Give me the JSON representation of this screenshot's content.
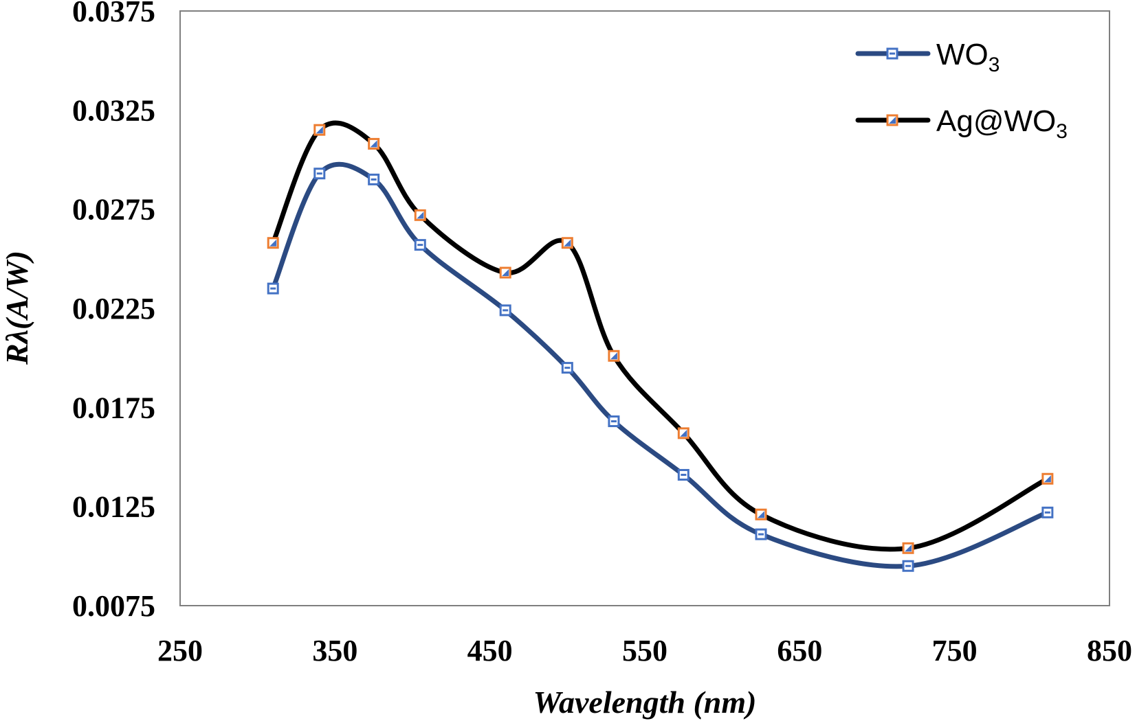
{
  "chart_data": {
    "type": "line",
    "title": "",
    "xlabel": "Wavelength (nm)",
    "ylabel": "Rλ(A/W)",
    "xlim": [
      250,
      850
    ],
    "ylim": [
      0.0075,
      0.0375
    ],
    "xticks": [
      250,
      350,
      450,
      550,
      650,
      750,
      850
    ],
    "yticks": [
      0.0075,
      0.0125,
      0.0175,
      0.0225,
      0.0275,
      0.0325,
      0.0375
    ],
    "xtick_labels": [
      "250",
      "350",
      "450",
      "550",
      "650",
      "750",
      "850"
    ],
    "ytick_labels": [
      "0.0075",
      "0.0125",
      "0.0175",
      "0.0225",
      "0.0275",
      "0.0325",
      "0.0375"
    ],
    "grid": false,
    "legend_position": "top-right",
    "smooth": true,
    "series": [
      {
        "name": "WO₃",
        "name_main": "WO",
        "name_sub": "3",
        "line_color": "#2b4a82",
        "marker_edge": "#4472c4",
        "marker": "square",
        "x": [
          310,
          340,
          375,
          405,
          460,
          500,
          530,
          575,
          625,
          720,
          810
        ],
        "y": [
          0.0235,
          0.0293,
          0.029,
          0.0257,
          0.0224,
          0.0195,
          0.0168,
          0.0141,
          0.0111,
          0.0095,
          0.0122
        ]
      },
      {
        "name": "Ag@WO₃",
        "name_main": "Ag@WO",
        "name_sub": "3",
        "line_color": "#000000",
        "marker_edge": "#ed7d31",
        "marker": "square",
        "x": [
          310,
          340,
          375,
          405,
          460,
          500,
          530,
          575,
          625,
          720,
          810
        ],
        "y": [
          0.0258,
          0.0315,
          0.0308,
          0.0272,
          0.0243,
          0.0258,
          0.0201,
          0.0162,
          0.0121,
          0.0104,
          0.0139
        ]
      }
    ]
  }
}
